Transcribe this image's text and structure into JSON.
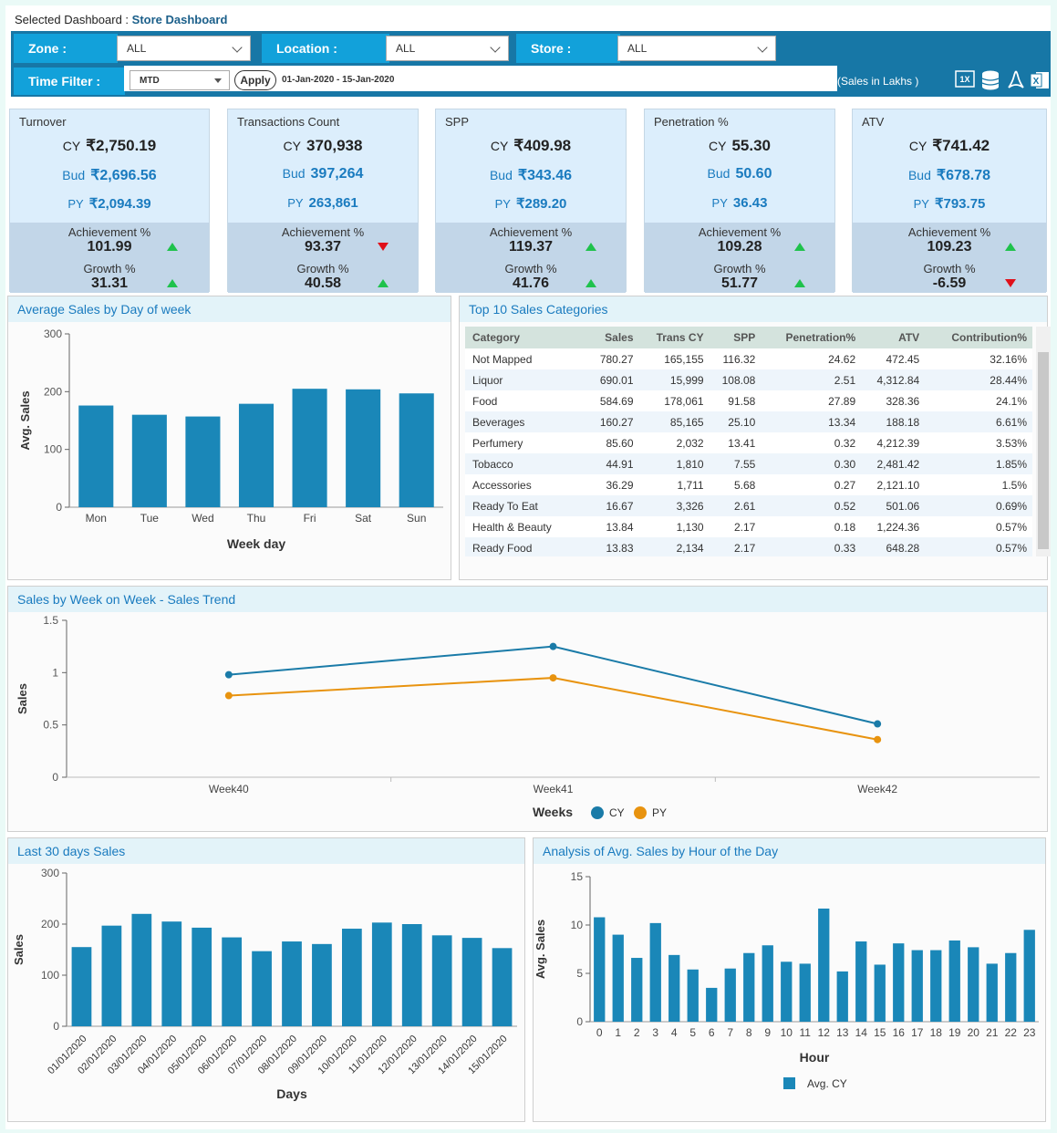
{
  "header": {
    "selected_label": "Selected Dashboard :",
    "dashboard_name": "Store Dashboard"
  },
  "filters": {
    "zone_label": "Zone :",
    "zone_value": "ALL",
    "location_label": "Location :",
    "location_value": "ALL",
    "store_label": "Store :",
    "store_value": "ALL",
    "time_label": "Time Filter :",
    "time_value": "MTD",
    "apply_label": "Apply",
    "date_range": "01-Jan-2020 - 15-Jan-2020",
    "units_note": "(Sales in Lakhs )"
  },
  "toolbar_icons": [
    "excel-1x-icon",
    "database-icon",
    "pdf-icon",
    "excel-icon"
  ],
  "kpis": [
    {
      "title": "Turnover",
      "cy": "₹2,750.19",
      "bud": "₹2,696.56",
      "py": "₹2,094.39",
      "ach_label": "Achievement %",
      "ach": "101.99",
      "ach_dir": "up",
      "gr_label": "Growth %",
      "gr": "31.31",
      "gr_dir": "up"
    },
    {
      "title": "Transactions Count",
      "cy": "370,938",
      "bud": "397,264",
      "py": "263,861",
      "ach_label": "Achievement %",
      "ach": "93.37",
      "ach_dir": "down",
      "gr_label": "Growth %",
      "gr": "40.58",
      "gr_dir": "up"
    },
    {
      "title": "SPP",
      "cy": "₹409.98",
      "bud": "₹343.46",
      "py": "₹289.20",
      "ach_label": "Achievement %",
      "ach": "119.37",
      "ach_dir": "up",
      "gr_label": "Growth %",
      "gr": "41.76",
      "gr_dir": "up"
    },
    {
      "title": "Penetration %",
      "cy": "55.30",
      "bud": "50.60",
      "py": "36.43",
      "ach_label": "Achievement %",
      "ach": "109.28",
      "ach_dir": "up",
      "gr_label": "Growth %",
      "gr": "51.77",
      "gr_dir": "up"
    },
    {
      "title": "ATV",
      "cy": "₹741.42",
      "bud": "₹678.78",
      "py": "₹793.75",
      "ach_label": "Achievement %",
      "ach": "109.23",
      "ach_dir": "up",
      "gr_label": "Growth %",
      "gr": "-6.59",
      "gr_dir": "down"
    }
  ],
  "kpi_labels": {
    "cy": "CY",
    "bud": "Bud",
    "py": "PY"
  },
  "colors": {
    "bar": "#1a87b8",
    "cy": "#1a7ba8",
    "py": "#e8930f",
    "up": "#1fc24c",
    "down": "#e0101a"
  },
  "top_categories": {
    "title": "Top 10 Sales Categories",
    "columns": [
      "Category",
      "Sales",
      "Trans CY",
      "SPP",
      "Penetration%",
      "ATV",
      "Contribution%"
    ],
    "rows": [
      [
        "Not Mapped",
        "780.27",
        "165,155",
        "116.32",
        "24.62",
        "472.45",
        "32.16%"
      ],
      [
        "Liquor",
        "690.01",
        "15,999",
        "108.08",
        "2.51",
        "4,312.84",
        "28.44%"
      ],
      [
        "Food",
        "584.69",
        "178,061",
        "91.58",
        "27.89",
        "328.36",
        "24.1%"
      ],
      [
        "Beverages",
        "160.27",
        "85,165",
        "25.10",
        "13.34",
        "188.18",
        "6.61%"
      ],
      [
        "Perfumery",
        "85.60",
        "2,032",
        "13.41",
        "0.32",
        "4,212.39",
        "3.53%"
      ],
      [
        "Tobacco",
        "44.91",
        "1,810",
        "7.55",
        "0.30",
        "2,481.42",
        "1.85%"
      ],
      [
        "Accessories",
        "36.29",
        "1,711",
        "5.68",
        "0.27",
        "2,121.10",
        "1.5%"
      ],
      [
        "Ready To Eat",
        "16.67",
        "3,326",
        "2.61",
        "0.52",
        "501.06",
        "0.69%"
      ],
      [
        "Health & Beauty",
        "13.84",
        "1,130",
        "2.17",
        "0.18",
        "1,224.36",
        "0.57%"
      ],
      [
        "Ready Food",
        "13.83",
        "2,134",
        "2.17",
        "0.33",
        "648.28",
        "0.57%"
      ]
    ]
  },
  "chart_data": [
    {
      "id": "dow",
      "type": "bar",
      "title": "Average Sales by Day of week",
      "xlabel": "Week day",
      "ylabel": "Avg. Sales",
      "ylim": [
        0,
        300
      ],
      "yticks": [
        0,
        100,
        200,
        300
      ],
      "categories": [
        "Mon",
        "Tue",
        "Wed",
        "Thu",
        "Fri",
        "Sat",
        "Sun"
      ],
      "values": [
        176,
        160,
        157,
        179,
        205,
        204,
        197
      ]
    },
    {
      "id": "wow",
      "type": "line",
      "title": "Sales by Week on Week - Sales Trend",
      "xlabel": "Weeks",
      "ylabel": "Sales",
      "ylim": [
        0,
        1.5
      ],
      "yticks": [
        "0",
        "0.5",
        "1",
        "1.5"
      ],
      "categories": [
        "Week40",
        "Week41",
        "Week42"
      ],
      "series": [
        {
          "name": "CY",
          "values": [
            0.98,
            1.25,
            0.51
          ]
        },
        {
          "name": "PY",
          "values": [
            0.78,
            0.95,
            0.36
          ]
        }
      ],
      "legend": "bottom"
    },
    {
      "id": "l30",
      "type": "bar",
      "title": "Last 30 days Sales",
      "xlabel": "Days",
      "ylabel": "Sales",
      "ylim": [
        0,
        300
      ],
      "yticks": [
        0,
        100,
        200,
        300
      ],
      "categories": [
        "01/01/2020",
        "02/01/2020",
        "03/01/2020",
        "04/01/2020",
        "05/01/2020",
        "06/01/2020",
        "07/01/2020",
        "08/01/2020",
        "09/01/2020",
        "10/01/2020",
        "11/01/2020",
        "12/01/2020",
        "13/01/2020",
        "14/01/2020",
        "15/01/2020"
      ],
      "values": [
        155,
        197,
        220,
        205,
        193,
        174,
        147,
        166,
        161,
        191,
        203,
        200,
        178,
        173,
        153
      ]
    },
    {
      "id": "hour",
      "type": "bar",
      "title": "Analysis of Avg. Sales by Hour of the Day",
      "xlabel": "Hour",
      "ylabel": "Avg. Sales",
      "ylim": [
        0,
        15
      ],
      "yticks": [
        0,
        5,
        10,
        15
      ],
      "categories": [
        "0",
        "1",
        "2",
        "3",
        "4",
        "5",
        "6",
        "7",
        "8",
        "9",
        "10",
        "11",
        "12",
        "13",
        "14",
        "15",
        "16",
        "17",
        "18",
        "19",
        "20",
        "21",
        "22",
        "23"
      ],
      "values": [
        10.8,
        9.0,
        6.6,
        10.2,
        6.9,
        5.4,
        3.5,
        5.5,
        7.1,
        7.9,
        6.2,
        6.0,
        11.7,
        5.2,
        8.3,
        5.9,
        8.1,
        7.4,
        7.4,
        8.4,
        7.7,
        6.0,
        7.1,
        9.5
      ],
      "series": [
        {
          "name": "Avg. CY",
          "values": [
            10.8,
            9.0,
            6.6,
            10.2,
            6.9,
            5.4,
            3.5,
            5.5,
            7.1,
            7.9,
            6.2,
            6.0,
            11.7,
            5.2,
            8.3,
            5.9,
            8.1,
            7.4,
            7.4,
            8.4,
            7.7,
            6.0,
            7.1,
            9.5
          ]
        }
      ],
      "legend": "bottom"
    }
  ]
}
